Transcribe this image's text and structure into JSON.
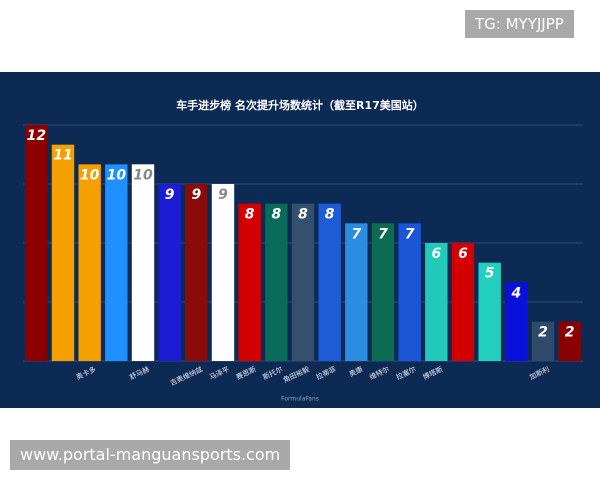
{
  "watermark_top": "TG: MYYJJPP",
  "watermark_bottom": "www.portal-manguansports.com",
  "chart_data": {
    "type": "bar",
    "title": "车手进步榜 名次提升场数统计（截至R17美国站）",
    "source": "FormulaFans",
    "categories": [
      null,
      null,
      "奥卡多",
      null,
      "舒马赫",
      null,
      "吉奥维纳兹",
      "马泽平",
      "赛恩斯",
      "斯托尔",
      "角田裕毅",
      "拉蒂菲",
      "奥康",
      "维特尔",
      "拉塞尔",
      "博塔斯",
      null,
      null,
      null,
      "加斯利",
      null
    ],
    "values": [
      12,
      11,
      10,
      10,
      10,
      9,
      9,
      9,
      8,
      8,
      8,
      8,
      7,
      7,
      7,
      6,
      6,
      5,
      4,
      2,
      2
    ],
    "colors": [
      "#8b0000",
      "#f5a000",
      "#f5a000",
      "#1e90ff",
      "#ffffff",
      "#1c1cd4",
      "#8b0a0a",
      "#ffffff",
      "#d40000",
      "#0a6b5a",
      "#34506e",
      "#1e5bd6",
      "#2b8de0",
      "#0c6b50",
      "#1a56d6",
      "#22c8b8",
      "#d40000",
      "#22d0c0",
      "#0a10dc",
      "#2f4a6a",
      "#8b0000"
    ],
    "ylim": [
      0,
      12
    ],
    "yticks": [
      0,
      3,
      6,
      9,
      12
    ],
    "grid": true
  }
}
